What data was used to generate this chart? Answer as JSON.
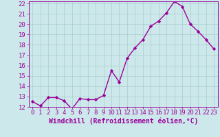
{
  "x": [
    0,
    1,
    2,
    3,
    4,
    5,
    6,
    7,
    8,
    9,
    10,
    11,
    12,
    13,
    14,
    15,
    16,
    17,
    18,
    19,
    20,
    21,
    22,
    23
  ],
  "y": [
    12.5,
    12.1,
    12.9,
    12.9,
    12.6,
    11.8,
    12.8,
    12.7,
    12.7,
    13.1,
    15.5,
    14.4,
    16.7,
    17.7,
    18.5,
    19.8,
    20.3,
    21.1,
    22.2,
    21.7,
    20.0,
    19.3,
    18.5,
    17.6
  ],
  "line_color": "#990099",
  "marker": "D",
  "marker_size": 2.2,
  "bg_color": "#cce8ea",
  "grid_color": "#aacccc",
  "xlabel": "Windchill (Refroidissement éolien,°C)",
  "xlabel_color": "#990099",
  "tick_color": "#990099",
  "ylim": [
    12,
    22
  ],
  "xlim": [
    -0.5,
    23.5
  ],
  "yticks": [
    12,
    13,
    14,
    15,
    16,
    17,
    18,
    19,
    20,
    21,
    22
  ],
  "xticks": [
    0,
    1,
    2,
    3,
    4,
    5,
    6,
    7,
    8,
    9,
    10,
    11,
    12,
    13,
    14,
    15,
    16,
    17,
    18,
    19,
    20,
    21,
    22,
    23
  ],
  "line_width": 1.0,
  "font_size": 6.5
}
